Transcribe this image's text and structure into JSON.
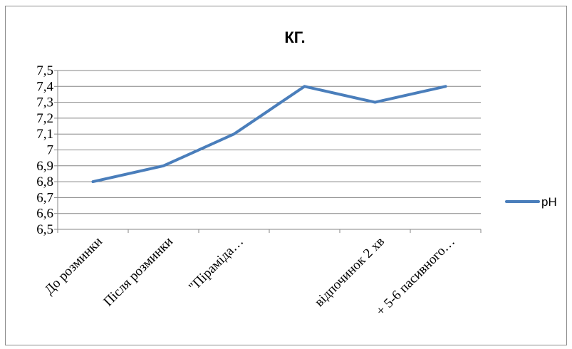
{
  "chart_data": {
    "type": "line",
    "title": "КГ.",
    "categories": [
      "До розминки",
      "Після розминки",
      "\"Піраміда…",
      "",
      "відпочинок 2 хв",
      "+ 5-6 пасивного…"
    ],
    "series": [
      {
        "name": "pH",
        "values": [
          6.8,
          6.9,
          7.1,
          7.4,
          7.3,
          7.4
        ],
        "color": "#4a7ebb"
      }
    ],
    "ylim": [
      6.5,
      7.5
    ],
    "yticks": [
      "6,5",
      "6,6",
      "6,7",
      "6,8",
      "6,9",
      "7",
      "7,1",
      "7,2",
      "7,3",
      "7,4",
      "7,5"
    ],
    "grid": true,
    "legend": "right",
    "xlabel": "",
    "ylabel": ""
  }
}
